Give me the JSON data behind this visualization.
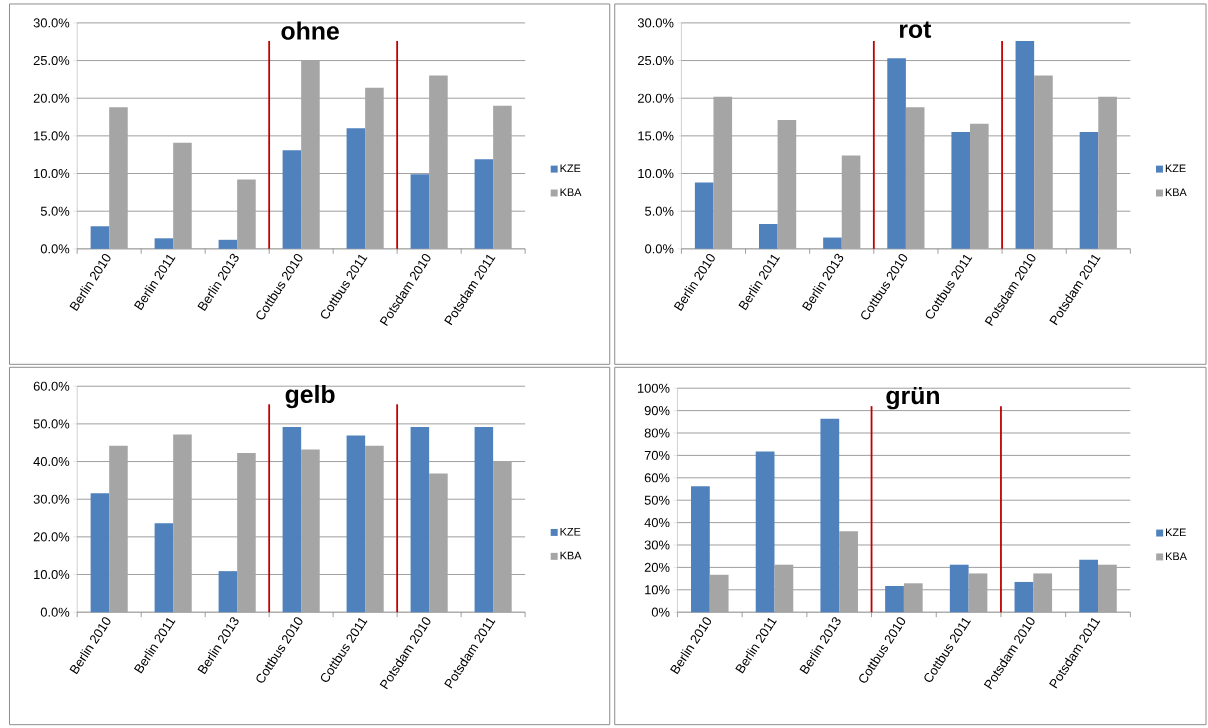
{
  "chart_data": [
    {
      "type": "bar",
      "title": "ohne",
      "categories": [
        "Berlin 2010",
        "Berlin 2011",
        "Berlin 2013",
        "Cottbus 2010",
        "Cottbus 2011",
        "Potsdam 2010",
        "Potsdam 2011"
      ],
      "series": [
        {
          "name": "KZE",
          "color": "#4f81bd",
          "values": [
            3.0,
            1.4,
            1.2,
            13.1,
            16.0,
            9.9,
            11.9
          ]
        },
        {
          "name": "KBA",
          "color": "#a5a5a5",
          "values": [
            18.8,
            14.1,
            9.2,
            25.0,
            21.4,
            23.0,
            19.0
          ]
        }
      ],
      "ylim": [
        0,
        30
      ],
      "yticks": [
        {
          "value": 0,
          "label": "0.0%"
        },
        {
          "value": 5,
          "label": "5.0%"
        },
        {
          "value": 10,
          "label": "10.0%"
        },
        {
          "value": 15,
          "label": "15.0%"
        },
        {
          "value": 20,
          "label": "20.0%"
        },
        {
          "value": 25,
          "label": "25.0%"
        },
        {
          "value": 30,
          "label": "30.0%"
        }
      ],
      "grid": "y",
      "legend": "right"
    },
    {
      "type": "bar",
      "title": "rot",
      "categories": [
        "Berlin 2010",
        "Berlin 2011",
        "Berlin 2013",
        "Cottbus 2010",
        "Cottbus 2011",
        "Potsdam 2010",
        "Potsdam 2011"
      ],
      "series": [
        {
          "name": "KZE",
          "color": "#4f81bd",
          "values": [
            8.8,
            3.3,
            1.5,
            25.3,
            15.5,
            27.6,
            15.5
          ]
        },
        {
          "name": "KBA",
          "color": "#a5a5a5",
          "values": [
            20.2,
            17.1,
            12.4,
            18.8,
            16.6,
            23.0,
            20.2
          ]
        }
      ],
      "ylim": [
        0,
        30
      ],
      "yticks": [
        {
          "value": 0,
          "label": "0.0%"
        },
        {
          "value": 5,
          "label": "5.0%"
        },
        {
          "value": 10,
          "label": "10.0%"
        },
        {
          "value": 15,
          "label": "15.0%"
        },
        {
          "value": 20,
          "label": "20.0%"
        },
        {
          "value": 25,
          "label": "25.0%"
        },
        {
          "value": 30,
          "label": "30.0%"
        }
      ],
      "grid": "y",
      "legend": "right"
    },
    {
      "type": "bar",
      "title": "gelb",
      "categories": [
        "Berlin 2010",
        "Berlin 2011",
        "Berlin 2013",
        "Cottbus 2010",
        "Cottbus 2011",
        "Potsdam 2010",
        "Potsdam 2011"
      ],
      "series": [
        {
          "name": "KZE",
          "color": "#4f81bd",
          "values": [
            31.6,
            23.6,
            10.9,
            49.2,
            46.9,
            49.2,
            49.2
          ]
        },
        {
          "name": "KBA",
          "color": "#a5a5a5",
          "values": [
            44.2,
            47.2,
            42.3,
            43.2,
            44.2,
            36.8,
            40.0
          ]
        }
      ],
      "ylim": [
        0,
        60
      ],
      "yticks": [
        {
          "value": 0,
          "label": "0.0%"
        },
        {
          "value": 10,
          "label": "10.0%"
        },
        {
          "value": 20,
          "label": "20.0%"
        },
        {
          "value": 30,
          "label": "30.0%"
        },
        {
          "value": 40,
          "label": "40.0%"
        },
        {
          "value": 50,
          "label": "50.0%"
        },
        {
          "value": 60,
          "label": "60.0%"
        }
      ],
      "grid": "y",
      "legend": "right"
    },
    {
      "type": "bar",
      "title": "grün",
      "categories": [
        "Berlin 2010",
        "Berlin 2011",
        "Berlin 2013",
        "Cottbus 2010",
        "Cottbus 2011",
        "Potsdam 2010",
        "Potsdam 2011"
      ],
      "series": [
        {
          "name": "KZE",
          "color": "#4f81bd",
          "values": [
            56.2,
            71.7,
            86.4,
            11.7,
            21.2,
            13.5,
            23.4
          ]
        },
        {
          "name": "KBA",
          "color": "#a5a5a5",
          "values": [
            16.7,
            21.2,
            36.1,
            12.9,
            17.3,
            17.3,
            21.2
          ]
        }
      ],
      "ylim": [
        0,
        100
      ],
      "yticks": [
        {
          "value": 0,
          "label": "0%"
        },
        {
          "value": 10,
          "label": "10%"
        },
        {
          "value": 20,
          "label": "20%"
        },
        {
          "value": 30,
          "label": "30%"
        },
        {
          "value": 40,
          "label": "40%"
        },
        {
          "value": 50,
          "label": "50%"
        },
        {
          "value": 60,
          "label": "60%"
        },
        {
          "value": 70,
          "label": "70%"
        },
        {
          "value": 80,
          "label": "80%"
        },
        {
          "value": 90,
          "label": "90%"
        },
        {
          "value": 100,
          "label": "100%"
        }
      ],
      "grid": "y",
      "legend": "right"
    }
  ]
}
